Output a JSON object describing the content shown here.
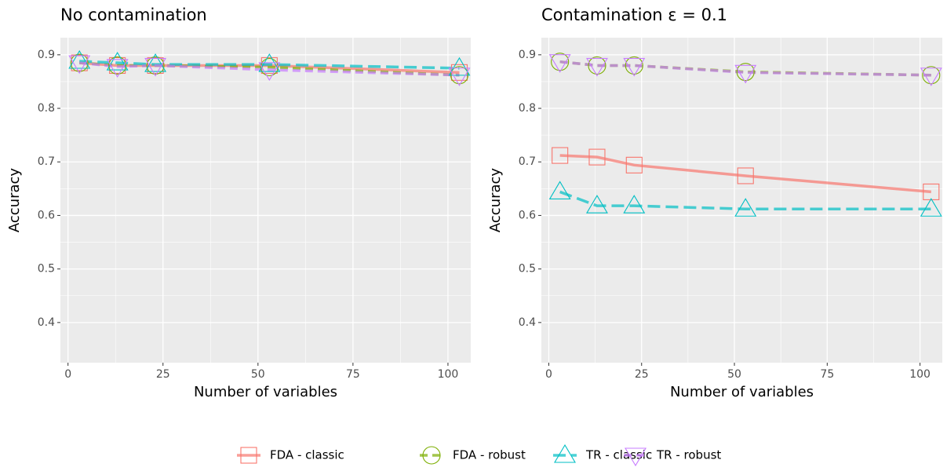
{
  "chart_data": [
    {
      "type": "line",
      "title": "No contamination",
      "xlabel": "Number of variables",
      "ylabel": "Accuracy",
      "x": [
        3,
        13,
        23,
        53,
        103
      ],
      "xlim": [
        -2,
        106
      ],
      "xticks": [
        0,
        25,
        50,
        75,
        100
      ],
      "ylim": [
        0.325,
        0.932
      ],
      "yticks": [
        0.4,
        0.5,
        0.6,
        0.7,
        0.8,
        0.9
      ],
      "grid": true,
      "series": [
        {
          "name": "FDA - classic",
          "color": "#F8766D",
          "linetype": "solid",
          "shape": "square",
          "values": [
            0.885,
            0.88,
            0.88,
            0.88,
            0.867
          ]
        },
        {
          "name": "FDA - robust",
          "color": "#7CAE00",
          "linetype": "dashed",
          "shape": "circle",
          "values": [
            0.885,
            0.88,
            0.88,
            0.877,
            0.862
          ]
        },
        {
          "name": "TR - classic",
          "color": "#00BFC4",
          "linetype": "longdash",
          "shape": "triangle-up",
          "values": [
            0.888,
            0.885,
            0.882,
            0.882,
            0.875
          ]
        },
        {
          "name": "TR - robust",
          "color": "#C77CFF",
          "linetype": "dashed",
          "shape": "triangle-down",
          "values": [
            0.885,
            0.878,
            0.88,
            0.872,
            0.862
          ]
        }
      ]
    },
    {
      "type": "line",
      "title": "Contamination ε = 0.1",
      "xlabel": "Number of variables",
      "ylabel": "Accuracy",
      "x": [
        3,
        13,
        23,
        53,
        103
      ],
      "xlim": [
        -2,
        106
      ],
      "xticks": [
        0,
        25,
        50,
        75,
        100
      ],
      "ylim": [
        0.325,
        0.932
      ],
      "yticks": [
        0.4,
        0.5,
        0.6,
        0.7,
        0.8,
        0.9
      ],
      "grid": true,
      "series": [
        {
          "name": "FDA - classic",
          "color": "#F8766D",
          "linetype": "solid",
          "shape": "square",
          "values": [
            0.712,
            0.709,
            0.694,
            0.674,
            0.644
          ]
        },
        {
          "name": "FDA - robust",
          "color": "#7CAE00",
          "linetype": "dashed",
          "shape": "circle",
          "values": [
            0.887,
            0.88,
            0.88,
            0.868,
            0.862
          ]
        },
        {
          "name": "TR - classic",
          "color": "#00BFC4",
          "linetype": "longdash",
          "shape": "triangle-up",
          "values": [
            0.644,
            0.618,
            0.618,
            0.612,
            0.612
          ]
        },
        {
          "name": "TR - robust",
          "color": "#C77CFF",
          "linetype": "dashed",
          "shape": "triangle-down",
          "values": [
            0.887,
            0.88,
            0.88,
            0.867,
            0.862
          ]
        }
      ]
    }
  ]
}
